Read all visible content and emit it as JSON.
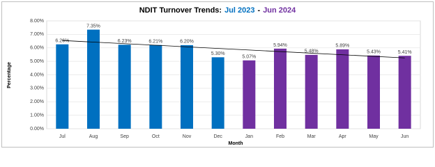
{
  "chart_data": {
    "type": "bar",
    "title_parts": [
      {
        "text": "NDIT Turnover Trends:",
        "color": "#000000"
      },
      {
        "text": "Jul 2023",
        "color": "#0070c0"
      },
      {
        "text": "-",
        "color": "#000000"
      },
      {
        "text": "Jun 2024",
        "color": "#7030a0"
      }
    ],
    "x_label": "Month",
    "y_label": "Percentage",
    "categories": [
      "Jul",
      "Aug",
      "Sep",
      "Oct",
      "Nov",
      "Dec",
      "Jan",
      "Feb",
      "Mar",
      "Apr",
      "May",
      "Jun"
    ],
    "values": [
      6.26,
      7.35,
      6.23,
      6.21,
      6.2,
      5.3,
      5.07,
      5.94,
      5.48,
      5.89,
      5.43,
      5.41
    ],
    "value_labels": [
      "6.26%",
      "7.35%",
      "6.23%",
      "6.21%",
      "6.20%",
      "5.30%",
      "5.07%",
      "5.94%",
      "5.48%",
      "5.89%",
      "5.43%",
      "5.41%"
    ],
    "colors": [
      "#0070c0",
      "#0070c0",
      "#0070c0",
      "#0070c0",
      "#0070c0",
      "#0070c0",
      "#7030a0",
      "#7030a0",
      "#7030a0",
      "#7030a0",
      "#7030a0",
      "#7030a0"
    ],
    "ylim": [
      0,
      8
    ],
    "yticks": [
      {
        "value": 0,
        "label": "0.00%"
      },
      {
        "value": 1,
        "label": "1.00%"
      },
      {
        "value": 2,
        "label": "2.00%"
      },
      {
        "value": 3,
        "label": "3.00%"
      },
      {
        "value": 4,
        "label": "4.00%"
      },
      {
        "value": 5,
        "label": "5.00%"
      },
      {
        "value": 6,
        "label": "6.00%"
      },
      {
        "value": 7,
        "label": "7.00%"
      },
      {
        "value": 8,
        "label": "8.00%"
      }
    ],
    "grid": true,
    "trendline": true
  }
}
